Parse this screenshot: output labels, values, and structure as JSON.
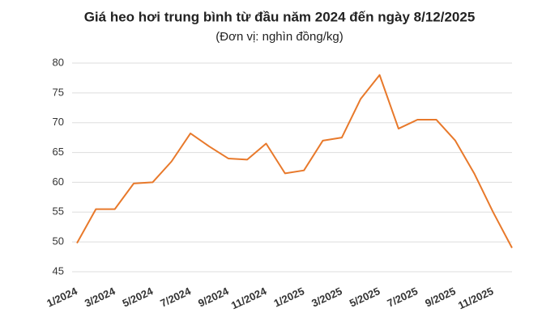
{
  "chart_data": {
    "type": "line",
    "title": "Giá heo hơi trung bình từ đầu năm 2024 đến ngày 8/12/2025",
    "subtitle": "(Đơn vị: nghìn đồng/kg)",
    "x": [
      "1/2024",
      null,
      "3/2024",
      null,
      "5/2024",
      null,
      "7/2024",
      null,
      "9/2024",
      null,
      "11/2024",
      null,
      "1/2025",
      null,
      "3/2025",
      null,
      "5/2025",
      null,
      "7/2025",
      null,
      "9/2025",
      null,
      "11/2025",
      null
    ],
    "series": [
      {
        "name": "Giá heo hơi",
        "color": "#e8792b",
        "values": [
          49.8,
          55.5,
          55.5,
          59.8,
          60,
          63.5,
          68.2,
          66,
          64,
          63.8,
          66.5,
          61.5,
          62,
          67,
          67.5,
          74,
          78,
          69,
          70.5,
          70.5,
          67,
          61.5,
          55,
          49
        ]
      }
    ],
    "ylim": [
      45,
      80
    ],
    "yticks": [
      45,
      50,
      55,
      60,
      65,
      70,
      75,
      80
    ],
    "grid": true
  }
}
